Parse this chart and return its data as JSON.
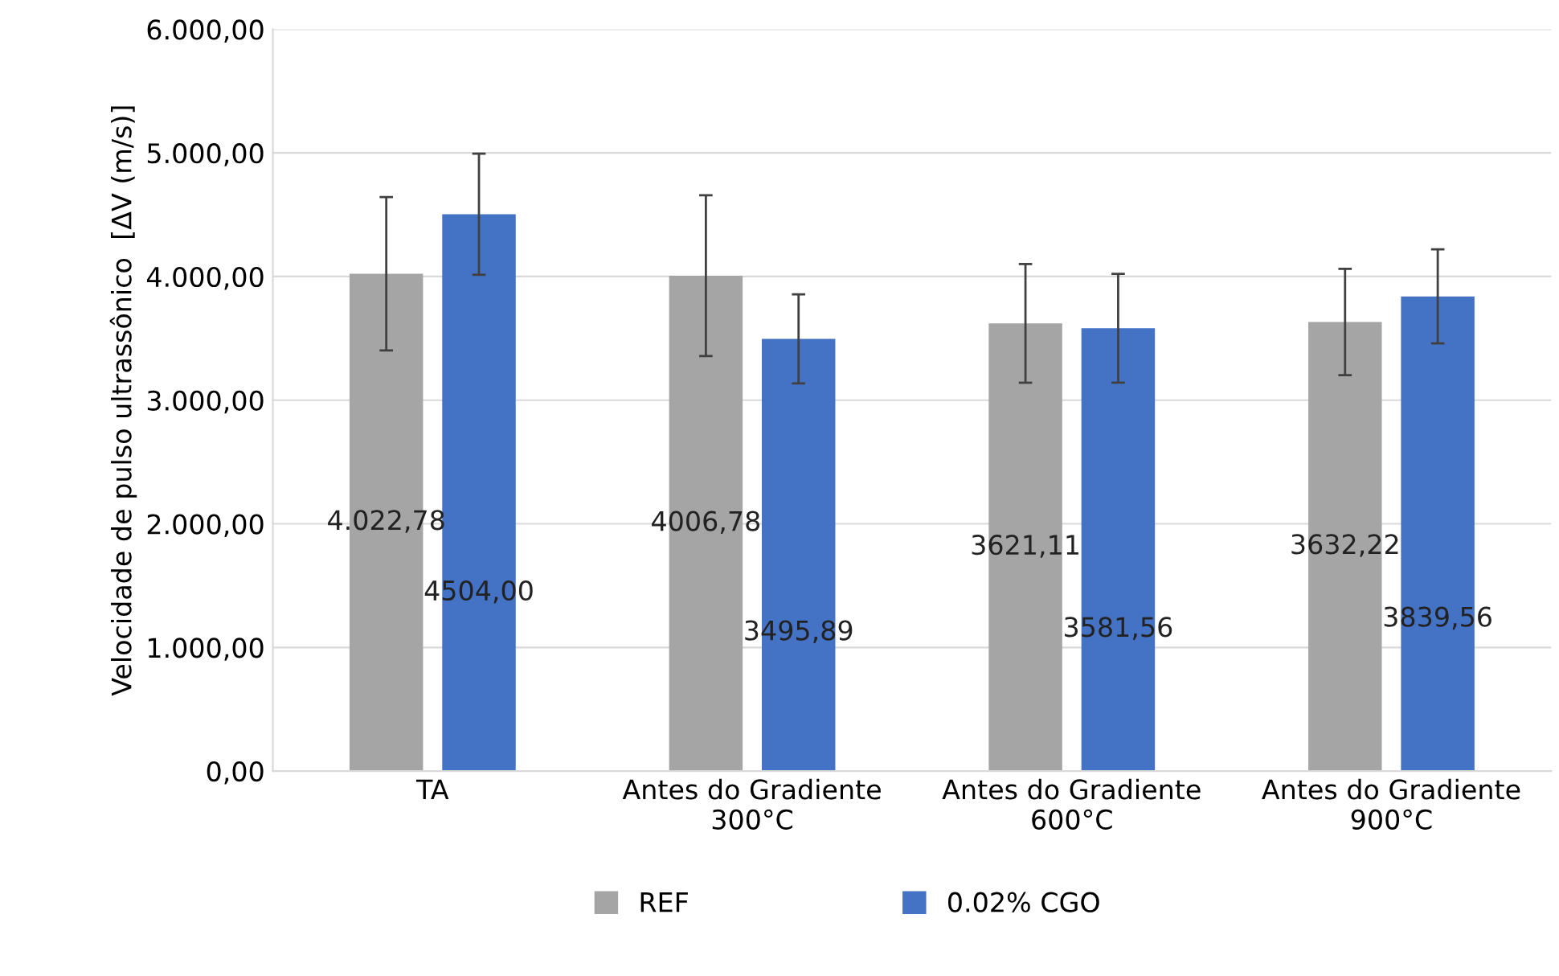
{
  "chart_data": {
    "type": "bar",
    "ylabel": "Velocidade de pulso ultrassônico  [ΔV (m/s)]",
    "categories": [
      "TA",
      "Antes do Gradiente\n300°C",
      "Antes do Gradiente\n600°C",
      "Antes do Gradiente\n900°C"
    ],
    "series": [
      {
        "name": "REF",
        "color": "#a5a5a5",
        "values": [
          4022.78,
          4006.78,
          3621.11,
          3632.22
        ],
        "errors": [
          620,
          650,
          480,
          430
        ],
        "value_labels": [
          "4.022,78",
          "4006,78",
          "3621,11",
          "3632,22"
        ]
      },
      {
        "name": "0.02% CGO",
        "color": "#4472c4",
        "values": [
          4504.0,
          3495.89,
          3581.56,
          3839.56
        ],
        "errors": [
          490,
          360,
          440,
          380
        ],
        "value_labels": [
          "4504,00",
          "3495,89",
          "3581,56",
          "3839,56"
        ]
      }
    ],
    "ylim": [
      0,
      6000
    ],
    "yticks": [
      {
        "value": 0,
        "label": "0,00"
      },
      {
        "value": 1000,
        "label": "1.000,00"
      },
      {
        "value": 2000,
        "label": "2.000,00"
      },
      {
        "value": 3000,
        "label": "3.000,00"
      },
      {
        "value": 4000,
        "label": "4.000,00"
      },
      {
        "value": 5000,
        "label": "5.000,00"
      },
      {
        "value": 6000,
        "label": "6.000,00"
      }
    ],
    "grid": "y",
    "legend": "bottom"
  }
}
